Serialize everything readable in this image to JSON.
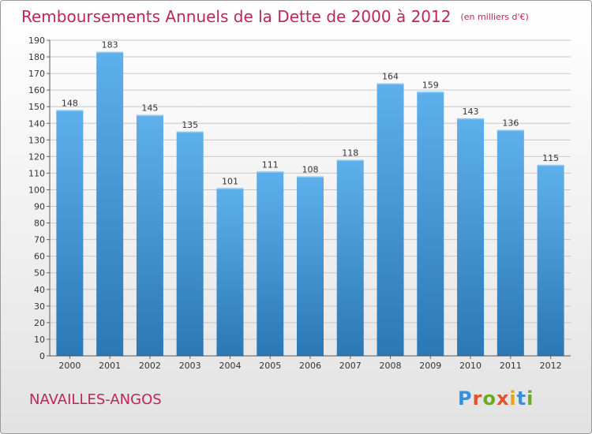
{
  "header": {
    "title": "Remboursements Annuels de la Dette de 2000 à 2012",
    "unit": "(en milliers d'€)"
  },
  "footer": {
    "commune": "NAVAILLES-ANGOS",
    "brand": "Proxiti"
  },
  "colors": {
    "title": "#c0245a",
    "bar_light": "#5eb0ec",
    "bar_dark": "#2a78b6",
    "grid": "#c8c8c8",
    "axis_text": "#333333"
  },
  "chart_data": {
    "type": "bar",
    "title": "Remboursements Annuels de la Dette de 2000 à 2012",
    "subtitle": "(en milliers d'€)",
    "categories": [
      "2000",
      "2001",
      "2002",
      "2003",
      "2004",
      "2005",
      "2006",
      "2007",
      "2008",
      "2009",
      "2010",
      "2011",
      "2012"
    ],
    "values": [
      148,
      183,
      145,
      135,
      101,
      111,
      108,
      118,
      164,
      159,
      143,
      136,
      115
    ],
    "ylim": [
      0,
      190
    ],
    "ytick_step": 10,
    "grid": true,
    "data_labels": true
  }
}
